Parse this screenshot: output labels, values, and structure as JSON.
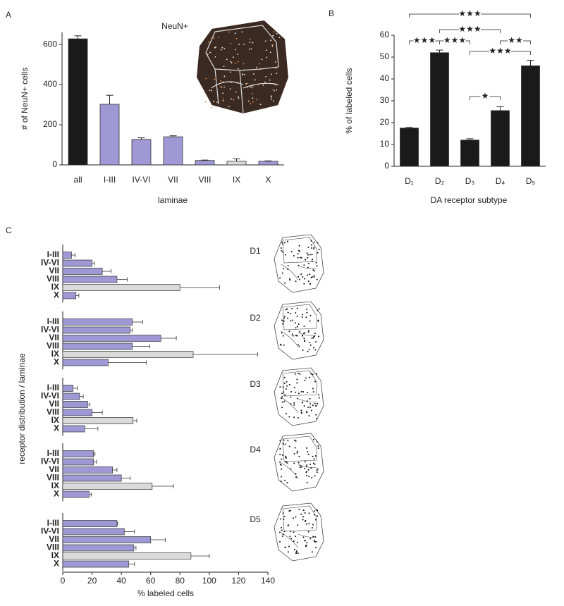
{
  "chart_data": [
    {
      "type": "bar",
      "panel_label": "A",
      "title": "NeuN+",
      "y_label": "# of NeuN+ cells",
      "x_label": "laminae",
      "categories": [
        "all",
        "I-III",
        "IV-VI",
        "VII",
        "VIII",
        "IX",
        "X"
      ],
      "values": [
        628,
        302,
        127,
        140,
        22,
        18,
        18
      ],
      "errors": [
        15,
        45,
        8,
        5,
        2,
        12,
        2
      ],
      "colors": [
        "#1a1a1a",
        "#9f98d4",
        "#9f98d4",
        "#9f98d4",
        "#9f98d4",
        "#dadada",
        "#9f98d4"
      ],
      "ylim": [
        0,
        660
      ],
      "yticks": [
        0,
        200,
        400,
        600
      ]
    },
    {
      "type": "bar",
      "panel_label": "B",
      "y_label": "% of labeled cells",
      "x_label": "DA receptor subtype",
      "categories": [
        "D₁",
        "D₂",
        "D₃",
        "D₄",
        "D₅"
      ],
      "values": [
        17.5,
        52,
        12,
        25.5,
        46
      ],
      "errors": [
        0.3,
        1.2,
        0.6,
        1.8,
        2.5
      ],
      "colors": [
        "#1a1a1a",
        "#1a1a1a",
        "#1a1a1a",
        "#1a1a1a",
        "#1a1a1a"
      ],
      "ylim": [
        0,
        60
      ],
      "yticks": [
        0,
        10,
        20,
        30,
        40,
        50,
        60
      ],
      "annotations": [
        {
          "pair": [
            "D₁",
            "D₅"
          ],
          "label": "★★★"
        },
        {
          "pair": [
            "D₁",
            "D₂"
          ],
          "label": "★★★"
        },
        {
          "pair": [
            "D₂",
            "D₃"
          ],
          "label": "★★★"
        },
        {
          "pair": [
            "D₂",
            "D₄"
          ],
          "label": "★★★"
        },
        {
          "pair": [
            "D₃",
            "D₅"
          ],
          "label": "★★★"
        },
        {
          "pair": [
            "D₄",
            "D₅"
          ],
          "label": "★★"
        },
        {
          "pair": [
            "D₃",
            "D₄"
          ],
          "label": "★"
        }
      ]
    },
    {
      "type": "hbar",
      "panel_label": "C",
      "y_label": "receptor distribution / laminae",
      "title": "D1",
      "categories": [
        "I-III",
        "IV-VI",
        "VII",
        "VIII",
        "IX",
        "X"
      ],
      "values": [
        6,
        20,
        27,
        37,
        80,
        9
      ],
      "errors": [
        2.5,
        1.5,
        6,
        7,
        27,
        2
      ],
      "colors": [
        "#9f98d4",
        "#9f98d4",
        "#9f98d4",
        "#9f98d4",
        "#dadada",
        "#9f98d4"
      ],
      "xlim": [
        0,
        140
      ]
    },
    {
      "type": "hbar",
      "title": "D2",
      "categories": [
        "I-III",
        "IV-VI",
        "VII",
        "VIII",
        "IX",
        "X"
      ],
      "values": [
        47.5,
        46,
        67,
        47.5,
        89,
        31
      ],
      "errors": [
        7,
        1.5,
        10.5,
        12,
        44,
        26
      ],
      "colors": [
        "#9f98d4",
        "#9f98d4",
        "#9f98d4",
        "#9f98d4",
        "#dadada",
        "#9f98d4"
      ],
      "xlim": [
        0,
        140
      ]
    },
    {
      "type": "hbar",
      "title": "D3",
      "categories": [
        "I-III",
        "IV-VI",
        "VII",
        "VIII",
        "IX",
        "X"
      ],
      "values": [
        7,
        11.5,
        17,
        20,
        48,
        15
      ],
      "errors": [
        3,
        2.5,
        1.5,
        7,
        2.5,
        9
      ],
      "colors": [
        "#9f98d4",
        "#9f98d4",
        "#9f98d4",
        "#9f98d4",
        "#dadada",
        "#9f98d4"
      ],
      "xlim": [
        0,
        140
      ]
    },
    {
      "type": "hbar",
      "title": "D4",
      "categories": [
        "I-III",
        "IV-VI",
        "VII",
        "VIII",
        "IX",
        "X"
      ],
      "values": [
        21,
        21,
        34,
        40,
        61,
        18
      ],
      "errors": [
        1,
        2,
        3,
        6,
        14.5,
        1.5
      ],
      "colors": [
        "#9f98d4",
        "#9f98d4",
        "#9f98d4",
        "#9f98d4",
        "#dadada",
        "#9f98d4"
      ],
      "xlim": [
        0,
        140
      ]
    },
    {
      "type": "hbar",
      "title": "D5",
      "x_label": "% labeled cells",
      "categories": [
        "I-III",
        "IV-VI",
        "VII",
        "VIII",
        "IX",
        "X"
      ],
      "values": [
        37,
        42,
        60,
        48.5,
        87.5,
        45
      ],
      "errors": [
        0.5,
        7,
        10,
        1.5,
        12.5,
        4
      ],
      "colors": [
        "#9f98d4",
        "#9f98d4",
        "#9f98d4",
        "#9f98d4",
        "#dadada",
        "#9f98d4"
      ],
      "xlim": [
        0,
        140
      ],
      "xticks": [
        0,
        20,
        40,
        60,
        80,
        100,
        120,
        140
      ]
    }
  ]
}
